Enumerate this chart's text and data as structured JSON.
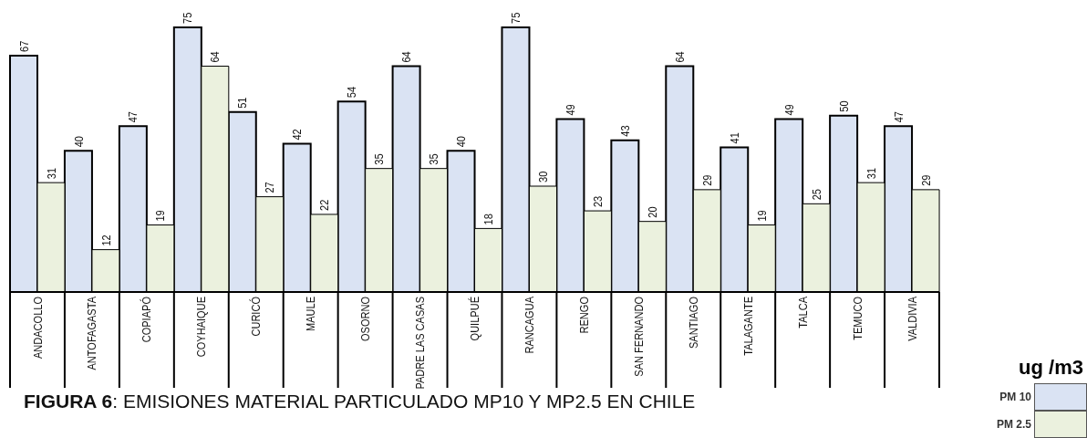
{
  "chart_data": {
    "type": "bar",
    "title": "FIGURA 6: EMISIONES MATERIAL PARTICULADO MP10 Y MP2.5 EN CHILE",
    "categories": [
      "ANDACOLLO",
      "ANTOFAGASTA",
      "COPIAPÓ",
      "COYHAIQUE",
      "CURICÓ",
      "MAULE",
      "OSORNO",
      "PADRE LAS CASAS",
      "QUILPUÉ",
      "RANCAGUA",
      "RENGO",
      "SAN FERNANDO",
      "SANTIAGO",
      "TALAGANTE",
      "TALCA",
      "TEMUCO",
      "VALDIVIA"
    ],
    "series": [
      {
        "name": "PM 10",
        "color": "#dae3f3",
        "values": [
          67,
          40,
          47,
          75,
          51,
          42,
          54,
          64,
          40,
          75,
          49,
          43,
          64,
          41,
          49,
          50,
          47
        ]
      },
      {
        "name": "PM 2.5",
        "color": "#ebf1de",
        "values": [
          31,
          12,
          19,
          64,
          27,
          22,
          35,
          35,
          18,
          30,
          23,
          20,
          29,
          19,
          25,
          31,
          29
        ]
      }
    ],
    "legend_title": "ug /m3",
    "legend": "bottom right",
    "data_labels": true,
    "tick_labels": "x"
  }
}
